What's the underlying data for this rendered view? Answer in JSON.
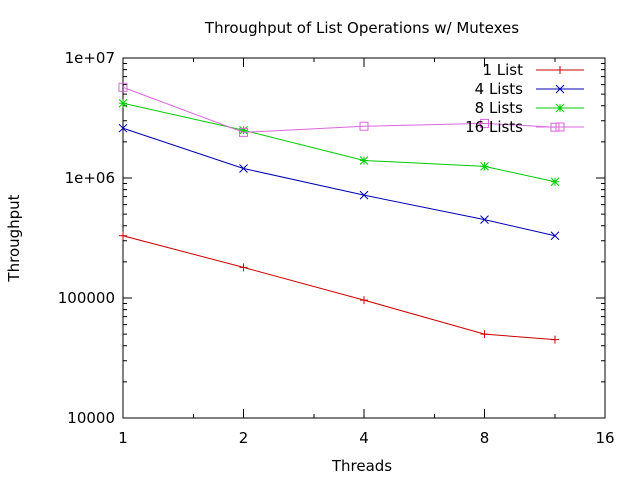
{
  "chart_data": {
    "type": "line",
    "title": "Throughput of List Operations w/ Mutexes",
    "xlabel": "Threads",
    "ylabel": "Throughput",
    "x_scale": "log2",
    "y_scale": "log10",
    "xlim": [
      1,
      16
    ],
    "ylim": [
      10000,
      10000000
    ],
    "x_ticks": [
      {
        "value": 1,
        "label": "1"
      },
      {
        "value": 2,
        "label": "2"
      },
      {
        "value": 4,
        "label": "4"
      },
      {
        "value": 8,
        "label": "8"
      },
      {
        "value": 16,
        "label": "16"
      }
    ],
    "y_ticks": [
      {
        "value": 10000,
        "label": "10000"
      },
      {
        "value": 100000,
        "label": "100000"
      },
      {
        "value": 1000000,
        "label": "1e+06"
      },
      {
        "value": 10000000,
        "label": "1e+07"
      }
    ],
    "grid": false,
    "legend_position": "top-right",
    "x": [
      1,
      2,
      4,
      8,
      12
    ],
    "series": [
      {
        "name": "1 List",
        "color": "#cc0000",
        "marker": "plus",
        "values": [
          330000,
          180000,
          96000,
          50000,
          45000
        ]
      },
      {
        "name": "4 Lists",
        "color": "#0000b0",
        "marker": "cross",
        "values": [
          2600000,
          1200000,
          720000,
          450000,
          330000
        ]
      },
      {
        "name": "8 Lists",
        "color": "#00cc00",
        "marker": "star",
        "values": [
          4200000,
          2500000,
          1400000,
          1250000,
          930000
        ]
      },
      {
        "name": "16 Lists",
        "color": "#dd66dd",
        "marker": "square",
        "values": [
          5700000,
          2400000,
          2700000,
          2850000,
          2650000
        ]
      }
    ]
  }
}
